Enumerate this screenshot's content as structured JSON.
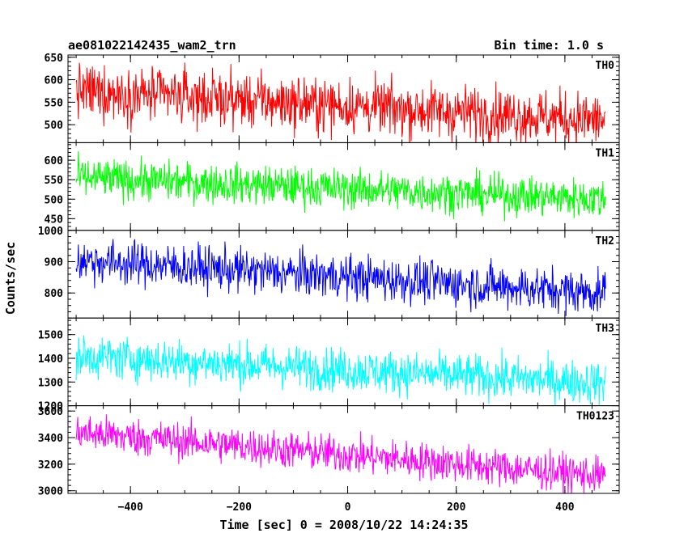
{
  "chart_data": {
    "type": "line",
    "title": "ae081022142435_wam2_trn",
    "subtitle": "Bin time: 1.0 s",
    "xlabel": "Time [sec] 0 = 2008/10/22 14:24:35",
    "ylabel": "Counts/sec",
    "xlim": [
      -515,
      500
    ],
    "x_ticks": [
      -400,
      -200,
      0,
      200,
      400
    ],
    "x_tick_labels": [
      "−400",
      "−200",
      "0",
      "200",
      "400"
    ],
    "x_sampling": {
      "start": -500,
      "end": 475,
      "step": 1
    },
    "panels": [
      {
        "name": "TH0",
        "color": "#ff0000",
        "ylim": [
          460,
          655
        ],
        "y_ticks": [
          500,
          550,
          600,
          650
        ],
        "trend_start": 575,
        "trend_end": 510,
        "noise_amplitude": 30
      },
      {
        "name": "TH1",
        "color": "#00ff00",
        "ylim": [
          420,
          645
        ],
        "y_ticks": [
          450,
          500,
          550,
          600
        ],
        "trend_start": 555,
        "trend_end": 500,
        "noise_amplitude": 25
      },
      {
        "name": "TH2",
        "color": "#0000ff",
        "ylim": [
          720,
          1000
        ],
        "y_ticks": [
          800,
          900,
          1000
        ],
        "trend_start": 905,
        "trend_end": 800,
        "noise_amplitude": 35
      },
      {
        "name": "TH3",
        "color": "#00ffff",
        "ylim": [
          1200,
          1570
        ],
        "y_ticks": [
          1200,
          1300,
          1400,
          1500
        ],
        "trend_start": 1410,
        "trend_end": 1295,
        "noise_amplitude": 45
      },
      {
        "name": "TH0123",
        "color": "#ff00ff",
        "ylim": [
          2980,
          3640
        ],
        "y_ticks": [
          3000,
          3200,
          3400,
          3600
        ],
        "trend_start": 3440,
        "trend_end": 3110,
        "noise_amplitude": 70
      }
    ]
  }
}
